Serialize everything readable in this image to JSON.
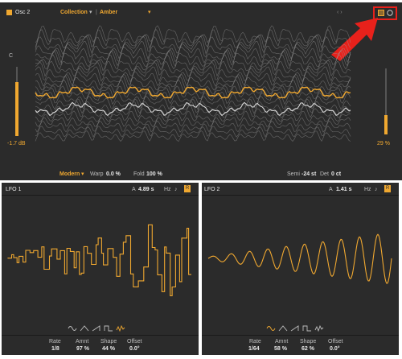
{
  "osc": {
    "title": "Osc 2",
    "collection_label": "Collection",
    "preset_name": "Amber",
    "note_label": "C",
    "gain_value": "-1.7 dB",
    "mix_value": "29 %",
    "mode_value": "Modern",
    "warp_label": "Warp",
    "warp_value": "0.0 %",
    "fold_label": "Fold",
    "fold_value": "100 %",
    "semi_label": "Semi",
    "semi_value": "-24 st",
    "det_label": "Det",
    "det_value": "0 ct"
  },
  "lfo1": {
    "title": "LFO 1",
    "a_label": "A",
    "a_value": "4.89 s",
    "hz_label": "Hz",
    "params": [
      {
        "label": "Rate",
        "value": "1/8"
      },
      {
        "label": "Amnt",
        "value": "97 %"
      },
      {
        "label": "Shape",
        "value": "44 %"
      },
      {
        "label": "Offset",
        "value": "0.0°"
      }
    ]
  },
  "lfo2": {
    "title": "LFO 2",
    "a_label": "A",
    "a_value": "1.41 s",
    "hz_label": "Hz",
    "params": [
      {
        "label": "Rate",
        "value": "1/64"
      },
      {
        "label": "Amnt",
        "value": "58 %"
      },
      {
        "label": "Shape",
        "value": "62 %"
      },
      {
        "label": "Offset",
        "value": "0.0°"
      }
    ]
  },
  "icons": {
    "toggle": "power-toggle-icon",
    "dropdown": "chevron-down-icon",
    "arrows": "left-right-arrows-icon",
    "view_list": "list-view-icon",
    "view_circle": "circle-view-icon",
    "annotation": "red-arrow-icon",
    "note": "music-note-icon",
    "shapes": [
      "sine-shape-icon",
      "triangle-shape-icon",
      "saw-shape-icon",
      "square-shape-icon",
      "random-shape-icon"
    ]
  },
  "colors": {
    "accent": "#f0a830",
    "panel": "#2b2b2b",
    "highlight": "#e8211b"
  },
  "levels": {
    "gain_fader": 0.78,
    "mix_fader": 0.29
  }
}
